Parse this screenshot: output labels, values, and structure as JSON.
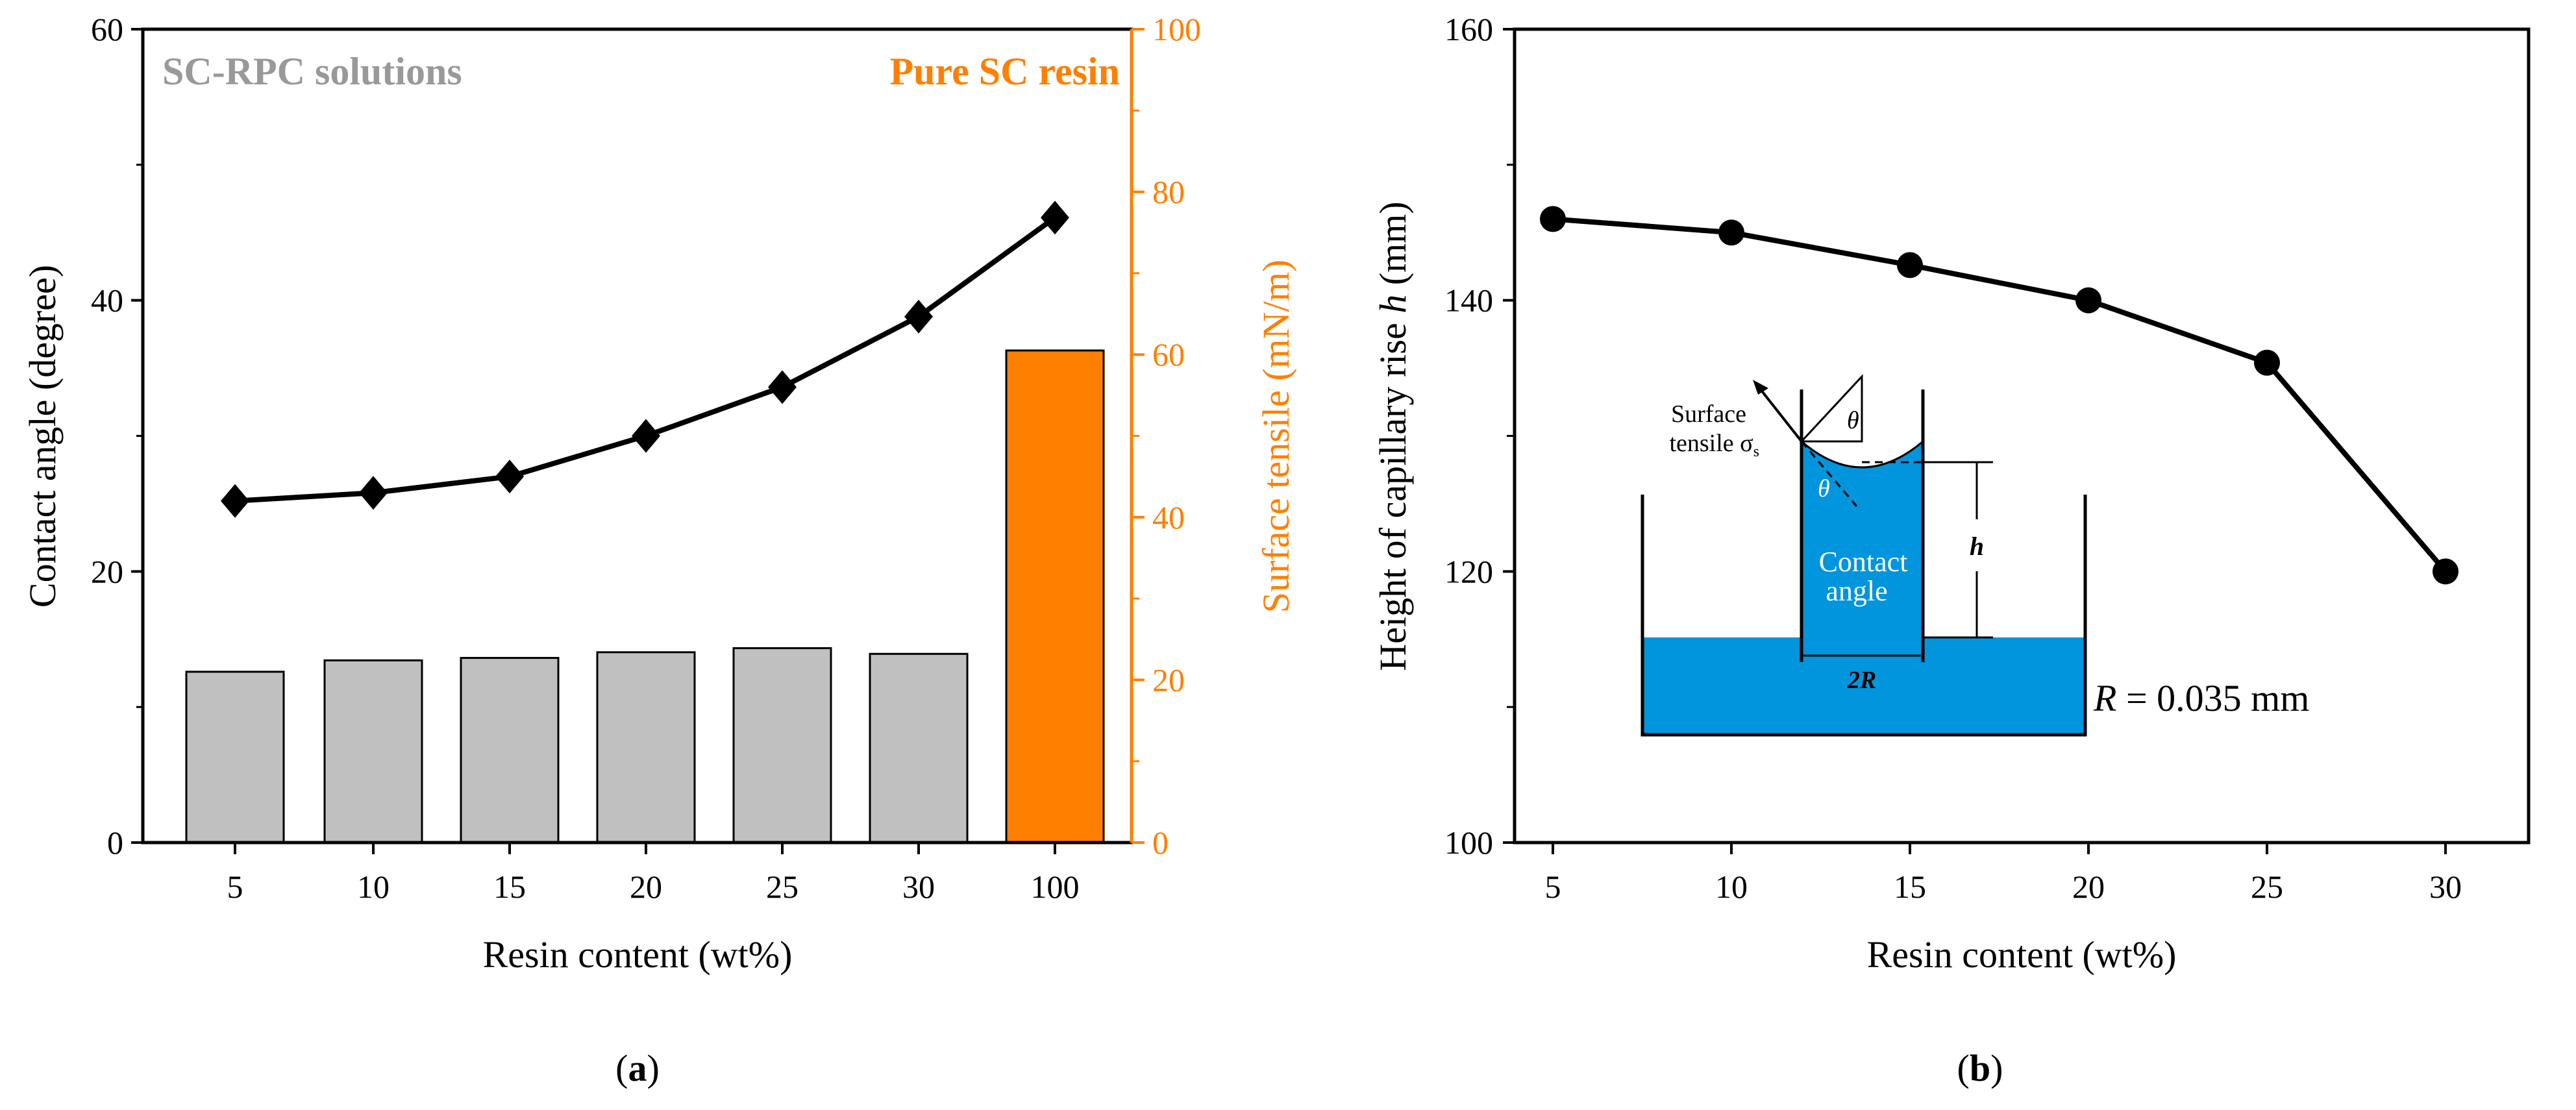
{
  "chart_data": [
    {
      "type": "bar+line",
      "panel_label": "(a)",
      "panel_letter": "a",
      "categories": [
        "5",
        "10",
        "15",
        "20",
        "25",
        "30",
        "100"
      ],
      "xlabel": "Resin content (wt%)",
      "ylabel": "Contact angle (degree)",
      "y2label": "Surface tensile (mN/m)",
      "ylim": [
        0,
        60
      ],
      "y2lim": [
        0,
        100
      ],
      "yticks": [
        "0",
        "20",
        "40",
        "60"
      ],
      "y2ticks": [
        "0",
        "20",
        "40",
        "60",
        "80",
        "100"
      ],
      "annotations": {
        "left": "SC-RPC solutions",
        "right": "Pure SC resin"
      },
      "series": [
        {
          "name": "Contact angle",
          "axis": "left",
          "type": "line",
          "marker": "diamond",
          "values": [
            25.2,
            25.8,
            27.0,
            30.0,
            33.6,
            38.8,
            46.1
          ]
        },
        {
          "name": "Surface tensile",
          "axis": "right",
          "type": "bar",
          "values": [
            21.0,
            22.4,
            22.7,
            23.4,
            23.9,
            23.2,
            60.5
          ]
        }
      ],
      "colors": {
        "bar": "#c0c0c0",
        "bar_highlight": "#ff7f00",
        "annotation_left": "#999999",
        "axis_right": "#ff7f00"
      }
    },
    {
      "type": "line",
      "panel_label": "(b)",
      "panel_letter": "b",
      "x": [
        5,
        10,
        15,
        20,
        25,
        30
      ],
      "xticks": [
        "5",
        "10",
        "15",
        "20",
        "25",
        "30"
      ],
      "xlabel": "Resin content (wt%)",
      "ylabel_pre": "Height of capillary rise ",
      "ylabel_var": "h",
      "ylabel_post": " (mm)",
      "ylim": [
        100,
        160
      ],
      "yticks": [
        "100",
        "120",
        "140",
        "160"
      ],
      "series": [
        {
          "name": "Height of capillary rise",
          "marker": "circle",
          "values": [
            146.0,
            145.0,
            142.6,
            140.0,
            135.4,
            120.0
          ]
        }
      ],
      "inset": {
        "surface_line1": "Surface",
        "surface_line2": "tensile σ",
        "surface_sub": "s",
        "theta": "θ",
        "contact_line1": "Contact",
        "contact_line2": "angle",
        "h": "h",
        "two_r": "2R",
        "r_var": "R",
        "r_value": " = 0.035 mm",
        "water_color": "#0095dc"
      }
    }
  ]
}
